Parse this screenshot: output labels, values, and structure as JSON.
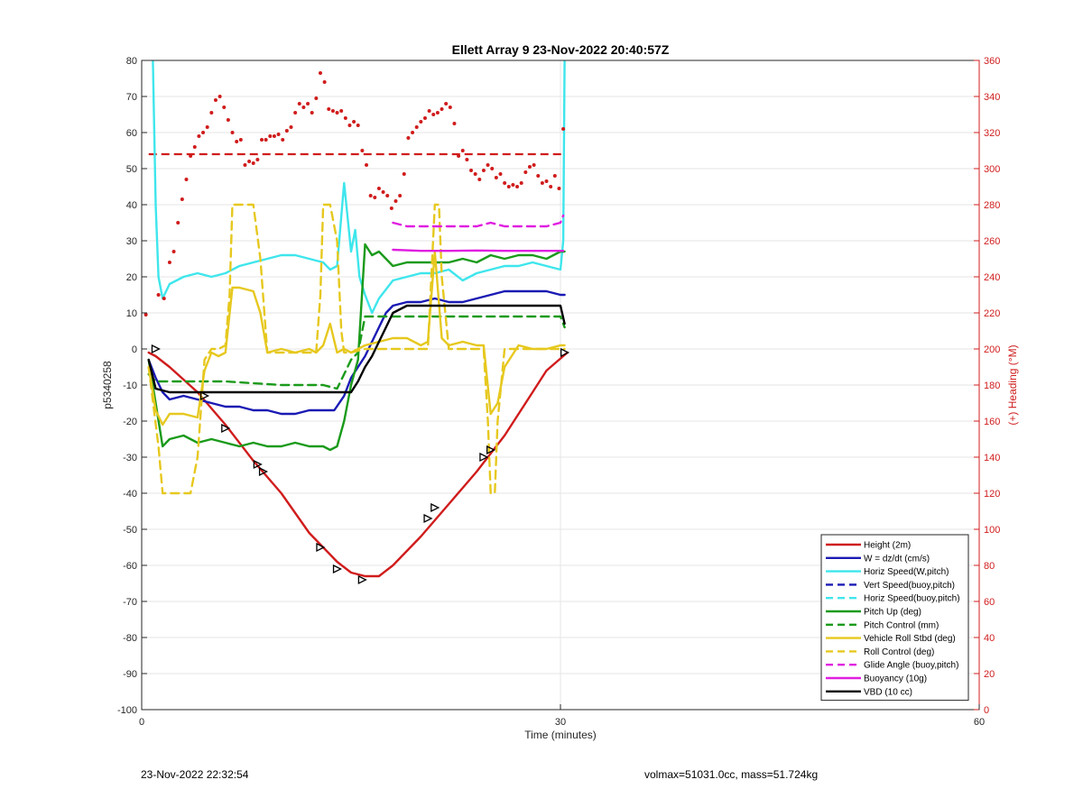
{
  "chart_data": {
    "type": "line",
    "title": "Ellett Array 9 23-Nov-2022 20:40:57Z",
    "xlabel": "Time (minutes)",
    "ylabel": "p5340258",
    "y2label": "(+) Heading (°M)",
    "xlim": [
      0,
      60
    ],
    "ylim": [
      -100,
      80
    ],
    "y2lim": [
      0,
      360
    ],
    "x_ticks": [
      "0",
      "30",
      "60"
    ],
    "y_ticks": [
      "80",
      "70",
      "60",
      "50",
      "40",
      "30",
      "20",
      "10",
      "0",
      "-10",
      "-20",
      "-30",
      "-40",
      "-50",
      "-60",
      "-70",
      "-80",
      "-90",
      "-100"
    ],
    "y2_ticks": [
      "360",
      "340",
      "320",
      "300",
      "280",
      "260",
      "240",
      "220",
      "200",
      "180",
      "160",
      "140",
      "120",
      "100",
      "80",
      "60",
      "40",
      "20",
      "0"
    ],
    "grid": true,
    "legend_position": "bottom-right",
    "colors": {
      "red": "#d01c1c",
      "blue": "#1a1ab4",
      "cyan": "#3ee6ec",
      "green": "#1a9a1a",
      "yellow": "#e6c81e",
      "magenta": "#e01ee0",
      "black": "#000000"
    },
    "series": [
      {
        "name": "Height (2m)",
        "color": "#d01c1c",
        "style": "solid",
        "x": [
          0.5,
          1.0,
          2.0,
          4.0,
          6.0,
          8.0,
          10.0,
          12.0,
          14.0,
          15.0,
          16.0,
          17.0,
          18.0,
          20.0,
          22.0,
          24.0,
          26.0,
          28.0,
          29.0,
          30.5
        ],
        "y": [
          -1,
          -2,
          -5,
          -12,
          -21,
          -31,
          -40,
          -51,
          -59,
          -62,
          -63,
          -63,
          -60,
          -52,
          -43,
          -34,
          -24,
          -12,
          -6,
          -1
        ]
      },
      {
        "name": "W = dz/dt (cm/s)",
        "color": "#1a1ab4",
        "style": "solid",
        "x": [
          0.5,
          1.0,
          1.5,
          2.0,
          3.0,
          4.0,
          5.0,
          6.0,
          7.0,
          8.0,
          9.0,
          10.0,
          11.0,
          12.0,
          13.0,
          13.8,
          14.5,
          15.0,
          15.5,
          16.0,
          16.5,
          17.0,
          17.5,
          18.0,
          19.0,
          20.0,
          21.0,
          22.0,
          23.0,
          24.0,
          25.0,
          26.0,
          27.0,
          28.0,
          29.0,
          30.0,
          30.3
        ],
        "y": [
          -3,
          -8,
          -12,
          -14,
          -13,
          -14,
          -15,
          -16,
          -16,
          -17,
          -17,
          -18,
          -18,
          -17,
          -17,
          -17,
          -13,
          -8,
          -5,
          -2,
          2,
          6,
          10,
          12,
          13,
          13,
          14,
          13,
          13,
          14,
          15,
          16,
          16,
          16,
          16,
          15,
          15
        ]
      },
      {
        "name": "Horiz Speed(W,pitch)",
        "color": "#3ee6ec",
        "style": "solid",
        "x": [
          0.8,
          1.0,
          1.2,
          1.5,
          2.0,
          3.0,
          4.0,
          5.0,
          6.0,
          7.0,
          8.0,
          9.0,
          10.0,
          11.0,
          12.0,
          13.0,
          13.5,
          14.0,
          14.5,
          15.0,
          15.3,
          15.6,
          16.0,
          16.5,
          17.0,
          18.0,
          19.0,
          20.0,
          21.0,
          22.0,
          23.0,
          24.0,
          25.0,
          26.0,
          27.0,
          28.0,
          29.0,
          30.0,
          30.2,
          30.3
        ],
        "y": [
          80,
          40,
          20,
          14,
          18,
          20,
          21,
          20,
          21,
          23,
          24,
          25,
          26,
          26,
          25,
          24,
          22,
          23,
          46,
          27,
          33,
          20,
          15,
          10,
          14,
          19,
          20,
          21,
          21,
          22,
          19,
          21,
          22,
          23,
          23,
          24,
          23,
          22,
          30,
          80
        ]
      },
      {
        "name": "Vert Speed(buoy,pitch)",
        "color": "#1a1ab4",
        "style": "dashed",
        "x": [],
        "y": []
      },
      {
        "name": "Horiz Speed(buoy,pitch)",
        "color": "#3ee6ec",
        "style": "dashed",
        "x": [],
        "y": []
      },
      {
        "name": "Pitch Up (deg)",
        "color": "#1a9a1a",
        "style": "solid",
        "x": [
          0.5,
          1.0,
          1.5,
          2.0,
          3.0,
          4.0,
          5.0,
          6.0,
          7.0,
          8.0,
          9.0,
          10.0,
          11.0,
          12.0,
          13.0,
          13.5,
          14.0,
          14.5,
          15.0,
          15.5,
          16.0,
          16.5,
          17.0,
          18.0,
          19.0,
          20.0,
          21.0,
          22.0,
          23.0,
          24.0,
          25.0,
          26.0,
          27.0,
          28.0,
          29.0,
          30.0,
          30.3
        ],
        "y": [
          -3,
          -15,
          -27,
          -25,
          -24,
          -26,
          -25,
          -26,
          -27,
          -26,
          -27,
          -27,
          -26,
          -27,
          -27,
          -28,
          -27,
          -20,
          -10,
          -3,
          29,
          26,
          27,
          23,
          24,
          24,
          24,
          24,
          25,
          24,
          26,
          25,
          26,
          26,
          25,
          27,
          27
        ]
      },
      {
        "name": "Pitch Control (mm)",
        "color": "#1a9a1a",
        "style": "dashed",
        "x": [
          0.5,
          1.0,
          2.0,
          6.0,
          10.0,
          13.0,
          14.0,
          14.5,
          15.0,
          15.5,
          16.0,
          30.0,
          30.3
        ],
        "y": [
          -7,
          -9,
          -9,
          -9,
          -10,
          -10,
          -11,
          -7,
          -3,
          -1,
          9,
          9,
          6
        ]
      },
      {
        "name": "Vehicle Roll Stbd (deg)",
        "color": "#e6c81e",
        "style": "solid",
        "x": [
          0.5,
          1.0,
          1.5,
          2.0,
          3.0,
          4.0,
          4.5,
          5.0,
          5.5,
          6.0,
          6.5,
          7.0,
          8.0,
          8.5,
          9.0,
          10.0,
          11.0,
          12.0,
          12.5,
          13.0,
          13.5,
          14.0,
          14.5,
          15.0,
          16.0,
          17.0,
          18.0,
          19.0,
          20.0,
          20.5,
          21.0,
          21.5,
          22.0,
          23.0,
          24.0,
          24.5,
          25.0,
          25.5,
          26.0,
          27.0,
          28.0,
          29.0,
          30.0,
          30.3
        ],
        "y": [
          -5,
          -17,
          -21,
          -18,
          -18,
          -19,
          -6,
          -1,
          -2,
          -1,
          17,
          17,
          16,
          10,
          -1,
          0,
          -1,
          0,
          -1,
          1,
          7,
          -1,
          0,
          -1,
          1,
          2,
          3,
          3,
          1,
          2,
          27,
          3,
          1,
          2,
          1,
          1,
          -18,
          -15,
          -5,
          1,
          0,
          0,
          1,
          1
        ]
      },
      {
        "name": "Roll Control (deg)",
        "color": "#e6c81e",
        "style": "dashed",
        "x": [
          0.5,
          1.2,
          1.5,
          3.5,
          4.0,
          4.5,
          5.0,
          5.5,
          6.0,
          6.3,
          6.5,
          7.0,
          8.0,
          8.5,
          9.0,
          10.0,
          11.0,
          12.0,
          12.5,
          12.8,
          13.0,
          13.5,
          14.0,
          14.3,
          14.5,
          15.0,
          16.0,
          18.0,
          20.0,
          20.5,
          21.0,
          21.3,
          21.5,
          22.0,
          24.0,
          24.5,
          24.8,
          25.0,
          25.3,
          25.5,
          26.0,
          28.0,
          30.0,
          30.3
        ],
        "y": [
          -5,
          -27,
          -40,
          -40,
          -30,
          -3,
          0,
          0,
          1,
          15,
          40,
          40,
          40,
          25,
          -1,
          -1,
          -1,
          -1,
          -1,
          15,
          40,
          40,
          30,
          5,
          -1,
          -1,
          0,
          0,
          0,
          0,
          40,
          40,
          20,
          0,
          0,
          0,
          -20,
          -40,
          -40,
          -20,
          0,
          0,
          0,
          0
        ]
      },
      {
        "name": "Glide Angle (buoy,pitch)",
        "color": "#e01ee0",
        "style": "dashed",
        "x": [
          18.0,
          19.0,
          20.0,
          21.0,
          22.0,
          23.0,
          24.0,
          25.0,
          26.0,
          27.0,
          28.0,
          29.0,
          30.0,
          30.2
        ],
        "y": [
          35,
          34,
          34,
          34,
          34,
          34,
          34,
          35,
          34,
          34,
          34,
          34,
          35,
          37
        ]
      },
      {
        "name": "Buoyancy (10g)",
        "color": "#e01ee0",
        "style": "solid",
        "x": [
          18.0,
          20.0,
          22.0,
          24.0,
          26.0,
          28.0,
          30.2
        ],
        "y": [
          27.5,
          27.2,
          27.2,
          27.3,
          27.2,
          27.2,
          27.2
        ]
      },
      {
        "name": "VBD (10 cc)",
        "color": "#000000",
        "style": "solid",
        "x": [
          0.5,
          1.0,
          2.0,
          6.0,
          10.0,
          13.0,
          14.0,
          14.5,
          15.0,
          15.5,
          16.0,
          16.5,
          17.0,
          17.5,
          18.0,
          19.0,
          20.0,
          22.0,
          24.0,
          26.0,
          28.0,
          30.0,
          30.3
        ],
        "y": [
          -3,
          -11,
          -12,
          -12,
          -12,
          -12,
          -12,
          -12,
          -12,
          -9,
          -5,
          -2,
          2,
          6,
          10,
          12,
          12,
          12,
          12,
          12,
          12,
          12,
          7
        ]
      }
    ],
    "height_markers": {
      "x": [
        1.0,
        4.5,
        6.0,
        8.3,
        8.7,
        12.8,
        14.0,
        15.8,
        20.5,
        21.0,
        24.5,
        25.0,
        30.3
      ],
      "y": [
        0,
        -13,
        -22,
        -32,
        -34,
        -55,
        -61,
        -64,
        -47,
        -44,
        -30,
        -28,
        -1
      ]
    },
    "heading_points": {
      "color": "#d01c1c",
      "x": [
        0.3,
        1.2,
        1.6,
        2.0,
        2.3,
        2.6,
        2.9,
        3.2,
        3.5,
        3.8,
        4.1,
        4.4,
        4.7,
        5.0,
        5.3,
        5.6,
        5.9,
        6.2,
        6.5,
        6.8,
        7.1,
        7.4,
        7.7,
        8.0,
        8.3,
        8.6,
        8.9,
        9.2,
        9.5,
        9.8,
        10.1,
        10.4,
        10.7,
        11.0,
        11.3,
        11.6,
        11.9,
        12.2,
        12.5,
        12.8,
        13.1,
        13.4,
        13.7,
        14.0,
        14.3,
        14.6,
        14.9,
        15.2,
        15.5,
        15.8,
        16.1,
        16.4,
        16.7,
        17.0,
        17.3,
        17.6,
        17.9,
        18.2,
        18.5,
        18.8,
        19.1,
        19.4,
        19.7,
        20.0,
        20.3,
        20.6,
        20.9,
        21.2,
        21.5,
        21.8,
        22.1,
        22.4,
        22.7,
        23.0,
        23.3,
        23.6,
        23.9,
        24.2,
        24.5,
        24.8,
        25.1,
        25.4,
        25.7,
        26.0,
        26.3,
        26.6,
        26.9,
        27.2,
        27.5,
        27.8,
        28.1,
        28.4,
        28.7,
        29.0,
        29.3,
        29.6,
        29.9,
        30.2
      ],
      "y": [
        219,
        230,
        228,
        248,
        254,
        270,
        283,
        294,
        307,
        312,
        318,
        320,
        323,
        331,
        338,
        340,
        334,
        327,
        320,
        315,
        316,
        302,
        304,
        303,
        305,
        316,
        316,
        318,
        318,
        319,
        316,
        321,
        323,
        331,
        336,
        334,
        336,
        331,
        339,
        353,
        348,
        333,
        332,
        331,
        332,
        328,
        324,
        326,
        324,
        310,
        302,
        285,
        284,
        289,
        287,
        285,
        278,
        282,
        285,
        297,
        317,
        320,
        323,
        326,
        328,
        332,
        330,
        331,
        333,
        336,
        334,
        325,
        307,
        310,
        305,
        299,
        297,
        294,
        299,
        302,
        300,
        295,
        297,
        292,
        290,
        291,
        290,
        292,
        298,
        301,
        302,
        296,
        292,
        293,
        290,
        296,
        289,
        322
      ]
    },
    "heading_mean": {
      "value": 308,
      "x": [
        0.5,
        30.3
      ],
      "color": "#d01c1c",
      "style": "dashed"
    }
  },
  "footer": {
    "left": "23-Nov-2022 22:32:54",
    "right": "volmax=51031.0cc, mass=51.724kg"
  }
}
